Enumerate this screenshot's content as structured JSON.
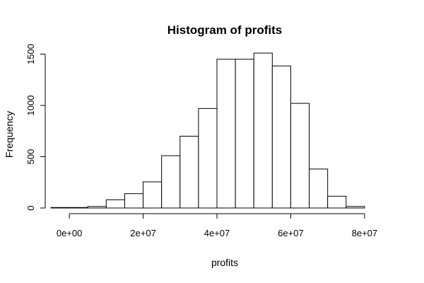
{
  "chart_data": {
    "type": "bar",
    "title": "Histogram of profits",
    "xlabel": "profits",
    "ylabel": "Frequency",
    "bin_edges": [
      -5000000,
      0,
      5000000,
      10000000,
      15000000,
      20000000,
      25000000,
      30000000,
      35000000,
      40000000,
      45000000,
      50000000,
      55000000,
      60000000,
      65000000,
      70000000,
      75000000,
      80000000
    ],
    "values": [
      5,
      5,
      15,
      80,
      140,
      255,
      510,
      700,
      970,
      1450,
      1450,
      1510,
      1385,
      1020,
      380,
      115,
      15
    ],
    "xlim": [
      -5000000,
      85000000
    ],
    "ylim": [
      0,
      1600
    ],
    "x_ticks": [
      0,
      20000000,
      40000000,
      60000000,
      80000000
    ],
    "x_tick_labels": [
      "0e+00",
      "2e+07",
      "4e+07",
      "6e+07",
      "8e+07"
    ],
    "y_ticks": [
      0,
      500,
      1000,
      1500
    ],
    "y_tick_labels": [
      "0",
      "500",
      "1000",
      "1500"
    ],
    "grid": false,
    "colors": {
      "bar_fill": "#ffffff",
      "bar_stroke": "#000000"
    }
  }
}
